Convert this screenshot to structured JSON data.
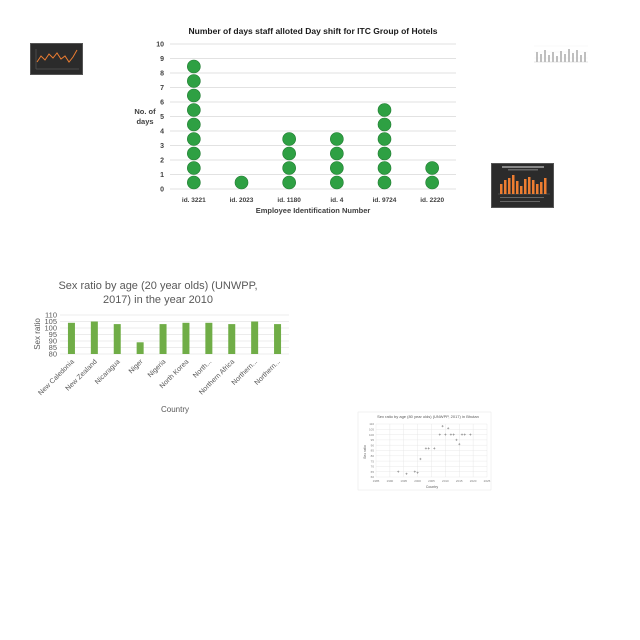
{
  "colors": {
    "dot_green": "#2ea043",
    "dot_stroke": "#1f7a30",
    "bar_green": "#70ad47",
    "grid": "#d9d9d9",
    "text": "#404040",
    "title": "#1a1a1a",
    "scatter_marker": "#7f7f7f",
    "thumb_bg": "#2b2b2b",
    "thumb_orange": "#ed7d31"
  },
  "chart_data": [
    {
      "type": "scatter",
      "title": "Number of days staff alloted Day shift for ITC Group of Hotels",
      "xlabel": "Employee Identification Number",
      "ylabel_lines": [
        "No. of",
        "days"
      ],
      "categories": [
        "id. 3221",
        "id. 2023",
        "id. 1180",
        "id. 4",
        "id. 9724",
        "id. 2220"
      ],
      "values": [
        8,
        0,
        3,
        3,
        5,
        1
      ],
      "ylim": [
        0,
        10
      ],
      "yticks": [
        "0",
        "1",
        "2",
        "3",
        "4",
        "5",
        "6",
        "7",
        "8",
        "9",
        "10"
      ],
      "grid": true
    },
    {
      "type": "bar",
      "title_lines": [
        "Sex ratio by age (20 year olds) (UNWPP,",
        "2017) in the year 2010"
      ],
      "xlabel": "Country",
      "ylabel": "Sex ratio",
      "categories": [
        "New Caledonia",
        "New Zealand",
        "Nicaragua",
        "Niger",
        "Nigeria",
        "North Korea",
        "North...",
        "Northern Africa",
        "Northern...",
        "Northern..."
      ],
      "values": [
        104,
        105,
        103,
        89,
        103,
        104,
        104,
        103,
        105,
        103
      ],
      "ylim": [
        80,
        110
      ],
      "yticks": [
        "80",
        "85",
        "90",
        "95",
        "100",
        "105",
        "110"
      ],
      "grid": true
    },
    {
      "type": "scatter",
      "title": "Sex ratio by age (80 year olds) (UNWPP, 2017) in Bhutan",
      "xlabel": "Country",
      "ylabel": "Sex ratio",
      "x": [
        1993,
        1996,
        1999,
        2000,
        2001,
        2003,
        2004,
        2006,
        2008,
        2009,
        2010,
        2011,
        2012,
        2013,
        2014,
        2015,
        2016,
        2017,
        2019
      ],
      "y": [
        65,
        63,
        65,
        64,
        77,
        87,
        87,
        87,
        100,
        108,
        100,
        106,
        100,
        100,
        95,
        91,
        100,
        100,
        100
      ],
      "xlim": [
        1985,
        2025
      ],
      "ylim": [
        60,
        110
      ],
      "xticks": [
        "1985",
        "1990",
        "1995",
        "2000",
        "2005",
        "2010",
        "2015",
        "2020",
        "2025"
      ],
      "yticks": [
        "60",
        "65",
        "70",
        "75",
        "80",
        "85",
        "90",
        "95",
        "100",
        "105",
        "110"
      ],
      "grid": true
    }
  ]
}
